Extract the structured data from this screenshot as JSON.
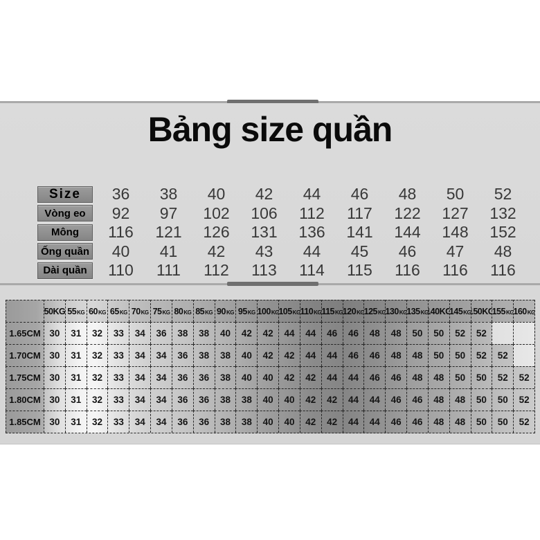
{
  "title": "Bảng size quần",
  "size_table": {
    "rows": [
      {
        "label": "Size",
        "values": [
          "36",
          "38",
          "40",
          "42",
          "44",
          "46",
          "48",
          "50",
          "52"
        ]
      },
      {
        "label": "Vòng eo",
        "values": [
          "92",
          "97",
          "102",
          "106",
          "112",
          "117",
          "122",
          "127",
          "132"
        ]
      },
      {
        "label": "Mông",
        "values": [
          "116",
          "121",
          "126",
          "131",
          "136",
          "141",
          "144",
          "148",
          "152"
        ]
      },
      {
        "label": "Ống quần",
        "values": [
          "40",
          "41",
          "42",
          "43",
          "44",
          "45",
          "46",
          "47",
          "48"
        ]
      },
      {
        "label": "Dài quần",
        "values": [
          "110",
          "111",
          "112",
          "113",
          "114",
          "115",
          "116",
          "116",
          "116"
        ]
      }
    ]
  },
  "weight_table": {
    "corner": "",
    "columns": [
      {
        "value": "50",
        "unit": "KG",
        "unit_big": true
      },
      {
        "value": "55",
        "unit": "KG",
        "unit_big": false
      },
      {
        "value": "60",
        "unit": "KG",
        "unit_big": false
      },
      {
        "value": "65",
        "unit": "KG",
        "unit_big": false
      },
      {
        "value": "70",
        "unit": "KG",
        "unit_big": false
      },
      {
        "value": "75",
        "unit": "KG",
        "unit_big": false
      },
      {
        "value": "80",
        "unit": "KG",
        "unit_big": false
      },
      {
        "value": "85",
        "unit": "KG",
        "unit_big": false
      },
      {
        "value": "90",
        "unit": "KG",
        "unit_big": false
      },
      {
        "value": "95",
        "unit": "KG",
        "unit_big": false
      },
      {
        "value": "100",
        "unit": "KG",
        "unit_big": false
      },
      {
        "value": "105",
        "unit": "KG",
        "unit_big": false
      },
      {
        "value": "110",
        "unit": "KG",
        "unit_big": false
      },
      {
        "value": "115",
        "unit": "KG",
        "unit_big": false
      },
      {
        "value": "120",
        "unit": "KG",
        "unit_big": false
      },
      {
        "value": "125",
        "unit": "KG",
        "unit_big": false
      },
      {
        "value": "130",
        "unit": "KG",
        "unit_big": false
      },
      {
        "value": "135",
        "unit": "KG",
        "unit_big": false
      },
      {
        "value": "140",
        "unit": "KG",
        "unit_big": true
      },
      {
        "value": "145",
        "unit": "KG",
        "unit_big": false
      },
      {
        "value": "150",
        "unit": "KG",
        "unit_big": true
      },
      {
        "value": "155",
        "unit": "KG",
        "unit_big": false
      },
      {
        "value": "160",
        "unit": "KG",
        "unit_big": false
      }
    ],
    "rows": [
      {
        "label": "1.65CM",
        "values": [
          "30",
          "31",
          "32",
          "33",
          "34",
          "36",
          "38",
          "38",
          "40",
          "42",
          "42",
          "44",
          "44",
          "46",
          "46",
          "48",
          "48",
          "50",
          "50",
          "52",
          "52",
          "",
          ""
        ]
      },
      {
        "label": "1.70CM",
        "values": [
          "30",
          "31",
          "32",
          "33",
          "34",
          "34",
          "36",
          "38",
          "38",
          "40",
          "42",
          "42",
          "44",
          "44",
          "46",
          "46",
          "48",
          "48",
          "50",
          "50",
          "52",
          "52",
          ""
        ]
      },
      {
        "label": "1.75CM",
        "values": [
          "30",
          "31",
          "32",
          "33",
          "34",
          "34",
          "36",
          "36",
          "38",
          "40",
          "40",
          "42",
          "42",
          "44",
          "44",
          "46",
          "46",
          "48",
          "48",
          "50",
          "50",
          "52",
          "52"
        ]
      },
      {
        "label": "1.80CM",
        "values": [
          "30",
          "31",
          "32",
          "33",
          "34",
          "34",
          "36",
          "36",
          "38",
          "38",
          "40",
          "40",
          "42",
          "42",
          "44",
          "44",
          "46",
          "46",
          "48",
          "48",
          "50",
          "50",
          "52"
        ]
      },
      {
        "label": "1.85CM",
        "values": [
          "30",
          "31",
          "32",
          "33",
          "34",
          "34",
          "36",
          "36",
          "38",
          "38",
          "40",
          "40",
          "42",
          "42",
          "44",
          "44",
          "46",
          "46",
          "48",
          "48",
          "50",
          "50",
          "52"
        ]
      }
    ]
  }
}
